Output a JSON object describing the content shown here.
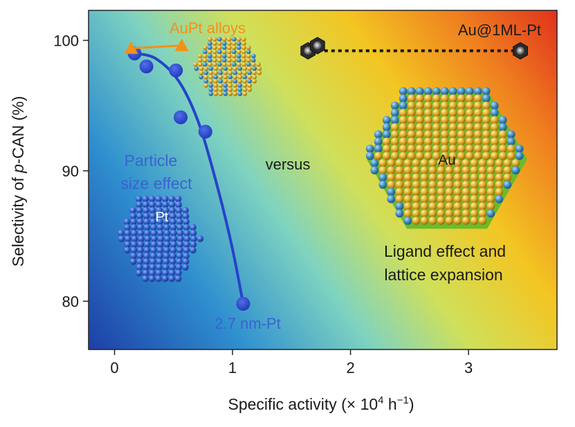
{
  "chart_data": {
    "type": "scatter",
    "xlabel": "Specific activity (× 10",
    "xlabel_sup": "4",
    "xlabel_unit": " h",
    "xlabel_unit_sup": "−1",
    "xlabel_end": ")",
    "ylabel_prefix": "Selectivity of ",
    "ylabel_italic": "p",
    "ylabel_suffix": "-CAN (%)",
    "xlim": [
      -0.22,
      3.75
    ],
    "ylim": [
      76.3,
      102.3
    ],
    "xticks": [
      0,
      1,
      2,
      3
    ],
    "xtick_labels": [
      "0",
      "1",
      "2",
      "3"
    ],
    "yticks": [
      80,
      90,
      100
    ],
    "ytick_labels": [
      "80",
      "90",
      "100"
    ],
    "grid": false,
    "legend": "none",
    "background": "diagonal gradient from blue (lower left) to red (upper right)",
    "series": [
      {
        "name": "",
        "marker": "circle",
        "color": "#2743c8",
        "points": [
          {
            "x": 0.17,
            "y": 99.0
          },
          {
            "x": 0.27,
            "y": 98.0
          },
          {
            "x": 0.52,
            "y": 97.7
          },
          {
            "x": 0.56,
            "y": 94.1
          },
          {
            "x": 0.77,
            "y": 93.0
          },
          {
            "x": 1.09,
            "y": 79.8
          }
        ],
        "trend_curve": [
          {
            "x": 0.17,
            "y": 99.0
          },
          {
            "x": 0.35,
            "y": 98.6
          },
          {
            "x": 0.55,
            "y": 96.8
          },
          {
            "x": 0.72,
            "y": 93.5
          },
          {
            "x": 0.88,
            "y": 88.5
          },
          {
            "x": 1.0,
            "y": 84.0
          },
          {
            "x": 1.09,
            "y": 79.8
          }
        ]
      },
      {
        "name": "AuPt alloys",
        "marker": "triangle",
        "color": "#f59018",
        "points": [
          {
            "x": 0.14,
            "y": 99.4
          },
          {
            "x": 0.57,
            "y": 99.6
          }
        ]
      },
      {
        "name": "Au@1ML-Pt",
        "marker": "hexagon",
        "color": "#555555",
        "points": [
          {
            "x": 1.64,
            "y": 99.2
          },
          {
            "x": 1.72,
            "y": 99.6
          },
          {
            "x": 3.44,
            "y": 99.2
          }
        ]
      }
    ],
    "annotations": {
      "aupt": "AuPt alloys",
      "au1ml": "Au@1ML-Pt",
      "particle_line1": "Particle",
      "particle_line2": "size effect",
      "pt": "Pt",
      "versus": "versus",
      "au": "Au",
      "ligand_line1": "Ligand effect and",
      "ligand_line2": "lattice expansion",
      "nm_pt": "2.7 nm-Pt"
    },
    "colors": {
      "aupt": "#f59018",
      "blue_text": "#3a62d0",
      "dark_text": "#1a1a1a",
      "pt_sphere": "#2f5cc8",
      "au_sphere": "#d9a520",
      "shell_sphere": "#3f86b8",
      "shell_ring": "#6cbb2a"
    }
  }
}
